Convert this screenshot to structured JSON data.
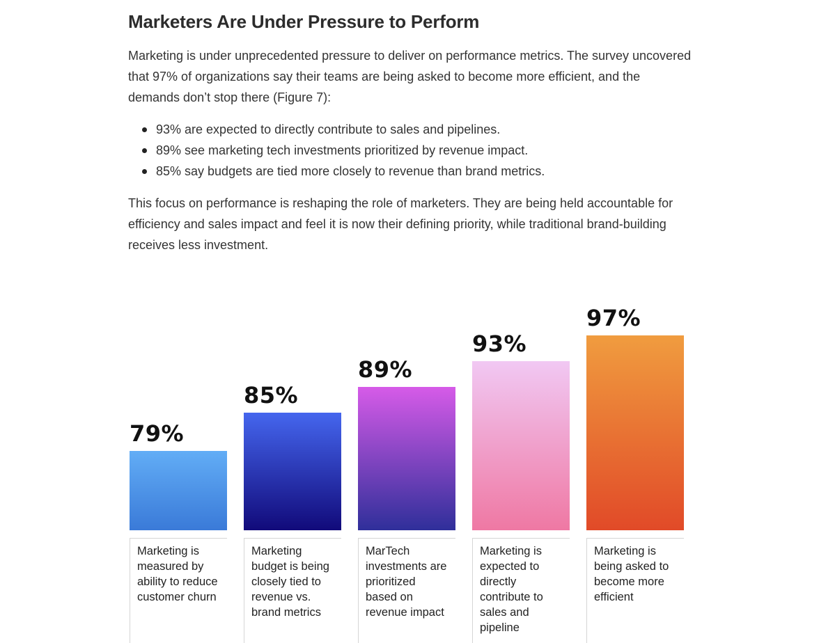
{
  "article": {
    "title": "Marketers Are Under Pressure to Perform",
    "intro": "Marketing is under unprecedented pressure to deliver on performance metrics. The survey uncovered that 97% of organizations say their teams are being asked to become more efficient, and the demands don’t stop there (Figure 7):",
    "bullets": [
      "93% are expected to directly contribute to sales and pipelines.",
      "89% see marketing tech investments prioritized by revenue impact.",
      "85% say budgets are tied more closely to revenue than brand metrics."
    ],
    "outro": "This focus on performance is reshaping the role of marketers. They are being held accountable for efficiency and sales impact and feel it is now their defining priority, while traditional brand-building receives less investment."
  },
  "chart_data": {
    "type": "bar",
    "categories": [
      "Marketing is measured by ability to reduce customer churn",
      "Marketing budget is being closely tied to revenue vs. brand metrics",
      "MarTech investments are prioritized based on revenue impact",
      "Marketing is expected to directly contribute to sales and pipeline",
      "Marketing is being asked to become more efficient"
    ],
    "values": [
      79,
      85,
      89,
      93,
      97
    ],
    "value_labels": [
      "79%",
      "85%",
      "89%",
      "93%",
      "97%"
    ],
    "unit": "%",
    "bar_gradients": [
      [
        "#62adf6",
        "#3a7ad8"
      ],
      [
        "#4566ee",
        "#110a7a"
      ],
      [
        "#d65be8",
        "#2f2f9a"
      ],
      [
        "#f1c8f3",
        "#ef78a3"
      ],
      [
        "#f09c3f",
        "#e14a28"
      ]
    ],
    "grid": false,
    "legend": "none"
  }
}
